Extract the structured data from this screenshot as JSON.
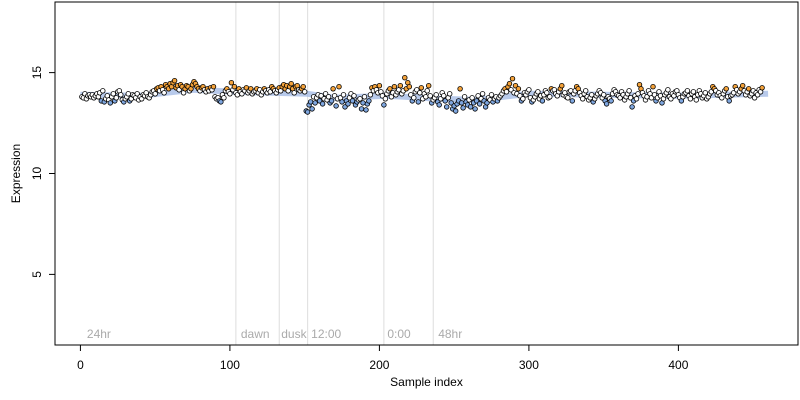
{
  "chart_data": {
    "type": "scatter",
    "title": "",
    "xlabel": "Sample index",
    "ylabel": "Expression",
    "xlim": [
      -17,
      480
    ],
    "ylim": [
      1.5,
      18.5
    ],
    "x_ticks": [
      0,
      100,
      200,
      300,
      400
    ],
    "y_ticks": [
      5,
      10,
      15
    ],
    "grid": false,
    "legend": "none",
    "boundaries": [
      104,
      133,
      152,
      203,
      236
    ],
    "region_labels": [
      {
        "x": 3,
        "label": "24hr"
      },
      {
        "x": 106,
        "label": "dawn"
      },
      {
        "x": 133,
        "label": "dusk"
      },
      {
        "x": 153,
        "label": "12:00"
      },
      {
        "x": 204,
        "label": "0:00"
      },
      {
        "x": 238,
        "label": "48hr"
      }
    ],
    "trend": [
      {
        "x": 0,
        "y": 13.9
      },
      {
        "x": 40,
        "y": 13.85
      },
      {
        "x": 75,
        "y": 14.15
      },
      {
        "x": 104,
        "y": 14.05
      },
      {
        "x": 152,
        "y": 13.95
      },
      {
        "x": 170,
        "y": 13.75
      },
      {
        "x": 205,
        "y": 13.85
      },
      {
        "x": 240,
        "y": 13.7
      },
      {
        "x": 265,
        "y": 13.65
      },
      {
        "x": 300,
        "y": 13.95
      },
      {
        "x": 350,
        "y": 13.9
      },
      {
        "x": 400,
        "y": 13.85
      },
      {
        "x": 460,
        "y": 13.95
      }
    ],
    "series": [
      {
        "start_x": 1,
        "step": 1,
        "y": [
          13.8,
          13.75,
          13.95,
          13.7,
          13.85,
          13.9,
          13.8,
          13.9,
          13.75,
          13.85,
          13.95,
          13.8,
          14.0,
          13.6,
          14.1,
          13.55,
          13.7,
          13.85,
          13.65,
          13.5,
          13.8,
          13.95,
          13.6,
          13.75,
          14.05,
          14.1,
          13.9,
          13.65,
          13.55,
          13.7,
          13.8,
          13.95,
          13.6,
          13.7,
          13.9,
          13.85,
          13.75,
          13.95,
          13.65,
          13.8,
          13.7,
          13.9,
          13.85,
          14.0,
          13.8,
          13.75,
          13.9,
          14.05,
          14.1,
          13.95,
          14.2,
          14.25,
          14.1,
          14.3,
          14.15,
          14.0,
          14.4,
          14.3,
          14.2,
          14.45,
          14.3,
          14.5,
          14.6,
          14.25,
          14.35,
          14.15,
          14.4,
          14.3,
          14.0,
          14.2,
          14.35,
          14.3,
          14.1,
          14.2,
          14.4,
          14.55,
          14.45,
          14.3,
          14.2,
          14.1,
          14.25,
          14.3,
          14.15,
          14.05,
          14.2,
          14.1,
          14.25,
          14.15,
          14.3,
          13.8,
          13.7,
          13.75,
          13.6,
          13.55,
          13.9,
          13.75,
          14.1,
          14.2,
          14.05,
          13.95,
          14.5,
          14.15,
          14.3,
          14.0,
          13.9,
          14.2,
          14.05,
          13.95,
          14.15,
          14.1,
          14.25,
          14.0,
          14.1,
          14.2,
          13.95,
          14.05,
          14.1,
          14.2,
          14.0,
          14.15,
          13.9,
          14.05,
          14.2,
          14.1,
          14.0,
          14.15,
          14.05,
          14.3,
          14.2,
          14.1,
          14.0,
          14.15,
          14.25,
          14.1,
          14.3,
          14.4,
          14.2,
          14.35,
          14.1,
          14.3,
          14.45,
          14.2,
          14.0,
          14.3,
          14.35,
          14.15,
          14.1,
          14.2,
          14.3,
          14.05,
          13.1,
          13.05,
          13.4,
          13.55,
          13.2,
          13.8,
          13.5,
          13.75,
          13.9,
          13.6,
          13.85,
          13.45,
          13.7,
          13.95,
          13.65,
          13.8,
          13.5,
          13.6,
          14.2,
          13.85,
          13.35,
          13.7,
          14.3,
          13.75,
          13.55,
          13.9,
          13.3,
          13.6,
          13.45,
          13.75,
          13.95,
          13.6,
          13.85,
          13.4,
          13.55,
          13.65,
          13.7,
          13.2,
          13.5,
          13.8,
          13.15,
          13.45,
          13.6,
          13.9,
          14.25,
          14.1,
          14.3,
          14.15,
          14.0,
          14.35,
          14.05,
          13.85,
          13.4,
          13.7,
          13.95,
          14.1,
          14.2,
          13.8,
          14.0,
          14.3,
          13.9,
          14.05,
          14.15,
          14.35,
          13.95,
          14.1,
          14.75,
          14.2,
          14.5,
          14.3,
          13.9,
          13.6,
          13.75,
          14.05,
          14.15,
          13.55,
          14.0,
          14.25,
          13.7,
          13.95,
          13.8,
          14.1,
          14.35,
          13.85,
          13.5,
          13.65,
          13.75,
          13.9,
          13.55,
          13.4,
          13.7,
          14.0,
          13.85,
          13.6,
          13.3,
          13.75,
          13.95,
          13.5,
          13.2,
          13.35,
          13.1,
          13.45,
          13.6,
          14.2,
          13.5,
          13.25,
          13.8,
          13.55,
          13.4,
          13.65,
          13.3,
          13.75,
          13.5,
          13.2,
          13.6,
          13.85,
          13.45,
          13.7,
          13.95,
          13.6,
          13.3,
          13.5,
          13.75,
          13.65,
          13.9,
          13.55,
          13.7,
          13.8,
          13.6,
          13.75,
          13.85,
          13.95,
          14.1,
          14.2,
          14.05,
          14.3,
          14.45,
          14.15,
          14.7,
          14.0,
          14.35,
          13.95,
          14.2,
          13.85,
          13.6,
          13.7,
          14.0,
          13.9,
          14.05,
          14.15,
          13.75,
          13.55,
          13.65,
          13.8,
          13.95,
          14.05,
          13.7,
          13.85,
          13.6,
          13.9,
          14.1,
          14.0,
          13.75,
          13.8,
          14.2,
          14.1,
          14.15,
          13.95,
          13.85,
          14.05,
          14.2,
          14.35,
          13.9,
          14.0,
          13.8,
          13.75,
          14.05,
          14.1,
          13.6,
          13.95,
          14.1,
          14.3,
          14.2,
          14.0,
          13.85,
          13.7,
          13.95,
          14.1,
          13.8,
          13.65,
          13.75,
          13.9,
          13.55,
          13.7,
          13.85,
          13.95,
          14.1,
          14.0,
          13.75,
          13.9,
          13.6,
          13.45,
          13.8,
          13.7,
          13.6,
          13.95,
          14.15,
          14.05,
          13.9,
          13.85,
          13.75,
          14.05,
          13.9,
          13.65,
          13.8,
          13.95,
          14.1,
          13.75,
          13.3,
          13.6,
          13.85,
          13.7,
          13.95,
          14.4,
          14.2,
          14.0,
          13.85,
          13.65,
          13.8,
          14.1,
          13.95,
          13.75,
          14.3,
          13.9,
          13.6,
          13.75,
          14.05,
          13.85,
          13.5,
          13.7,
          13.9,
          14.0,
          14.15,
          13.8,
          13.7,
          13.95,
          13.85,
          14.05,
          14.1,
          13.9,
          13.75,
          13.6,
          13.8,
          13.95,
          14.0,
          14.1,
          13.85,
          13.7,
          13.95,
          14.05,
          13.8,
          13.65,
          13.9,
          14.1,
          13.95,
          13.75,
          13.85,
          14.0,
          13.7,
          13.8,
          13.95,
          14.05,
          14.3,
          14.2,
          14.1,
          13.9,
          14.0,
          13.85,
          13.75,
          13.95,
          14.1,
          14.2,
          13.8,
          13.6,
          13.85,
          13.9,
          14.0,
          14.3,
          14.15,
          13.95,
          14.05,
          14.2,
          14.35,
          14.1,
          13.9,
          14.05,
          14.2,
          13.85,
          13.95,
          14.1,
          13.75,
          14.0,
          13.9,
          14.15,
          14.05,
          14.25
        ]
      }
    ],
    "colors": {
      "high": "#f4a23a",
      "low": "#7fa7e0",
      "neutral": "#ffffff",
      "outline": "#000000",
      "trend": "#9ab4e3",
      "boundary": "#dddddd",
      "region_label": "#aaaaaa"
    }
  }
}
